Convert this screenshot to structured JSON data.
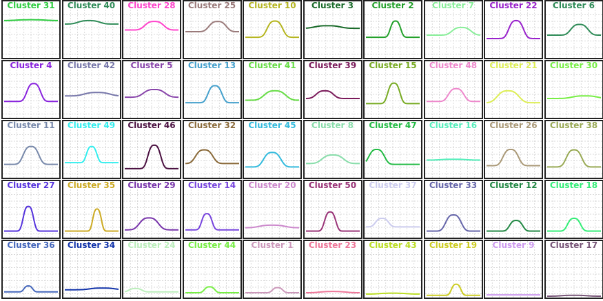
{
  "chart_data": {
    "type": "line",
    "layout": "small-multiples",
    "grid": true,
    "x_domain": [
      0,
      1
    ],
    "y_domain": [
      0,
      1
    ],
    "panels": [
      {
        "title": "Cluster 31",
        "color": "#2ecc40",
        "base": 0.84,
        "amp": 0.02,
        "center": 0.5,
        "width": 0.35
      },
      {
        "title": "Cluster 40",
        "color": "#2e8b57",
        "base": 0.76,
        "amp": 0.08,
        "center": 0.45,
        "width": 0.25
      },
      {
        "title": "Cluster 28",
        "color": "#ff44cc",
        "base": 0.62,
        "amp": 0.2,
        "center": 0.55,
        "width": 0.22
      },
      {
        "title": "Cluster 25",
        "color": "#9a7a7a",
        "base": 0.58,
        "amp": 0.24,
        "center": 0.6,
        "width": 0.2
      },
      {
        "title": "Cluster 10",
        "color": "#b5b520",
        "base": 0.45,
        "amp": 0.38,
        "center": 0.55,
        "width": 0.18
      },
      {
        "title": "Cluster 3",
        "color": "#1a6b2a",
        "base": 0.66,
        "amp": 0.06,
        "center": 0.4,
        "width": 0.3
      },
      {
        "title": "Cluster 2",
        "color": "#22a02a",
        "base": 0.45,
        "amp": 0.38,
        "center": 0.55,
        "width": 0.12
      },
      {
        "title": "Cluster 7",
        "color": "#88ee99",
        "base": 0.5,
        "amp": 0.18,
        "center": 0.65,
        "width": 0.22
      },
      {
        "title": "Cluster 22",
        "color": "#9922cc",
        "base": 0.42,
        "amp": 0.42,
        "center": 0.55,
        "width": 0.17
      },
      {
        "title": "Cluster 6",
        "color": "#2e8b57",
        "base": 0.5,
        "amp": 0.25,
        "center": 0.6,
        "width": 0.2
      },
      {
        "title": "Cluster 4",
        "color": "#8822dd",
        "base": 0.35,
        "amp": 0.42,
        "center": 0.55,
        "width": 0.16
      },
      {
        "title": "Cluster 42",
        "color": "#7777aa",
        "base": 0.48,
        "amp": 0.08,
        "center": 0.6,
        "width": 0.3
      },
      {
        "title": "Cluster 5",
        "color": "#8844aa",
        "base": 0.45,
        "amp": 0.18,
        "center": 0.55,
        "width": 0.25
      },
      {
        "title": "Cluster 13",
        "color": "#44a0cc",
        "base": 0.32,
        "amp": 0.4,
        "center": 0.55,
        "width": 0.16
      },
      {
        "title": "Cluster 41",
        "color": "#66dd44",
        "base": 0.38,
        "amp": 0.22,
        "center": 0.55,
        "width": 0.25
      },
      {
        "title": "Cluster 39",
        "color": "#7a1a5a",
        "base": 0.42,
        "amp": 0.18,
        "center": 0.35,
        "width": 0.2
      },
      {
        "title": "Cluster 15",
        "color": "#77aa22",
        "base": 0.3,
        "amp": 0.48,
        "center": 0.52,
        "width": 0.14
      },
      {
        "title": "Cluster 48",
        "color": "#ee88cc",
        "base": 0.35,
        "amp": 0.3,
        "center": 0.55,
        "width": 0.18
      },
      {
        "title": "Cluster 21",
        "color": "#ddee55",
        "base": 0.32,
        "amp": 0.28,
        "center": 0.4,
        "width": 0.25
      },
      {
        "title": "Cluster 30",
        "color": "#77ee44",
        "base": 0.42,
        "amp": 0.06,
        "center": 0.7,
        "width": 0.3
      },
      {
        "title": "Cluster 11",
        "color": "#7788aa",
        "base": 0.28,
        "amp": 0.42,
        "center": 0.5,
        "width": 0.18
      },
      {
        "title": "Cluster 49",
        "color": "#33eeee",
        "base": 0.32,
        "amp": 0.38,
        "center": 0.5,
        "width": 0.12
      },
      {
        "title": "Cluster 46",
        "color": "#4a1040",
        "base": 0.18,
        "amp": 0.55,
        "center": 0.55,
        "width": 0.15
      },
      {
        "title": "Cluster 32",
        "color": "#8a6a3a",
        "base": 0.3,
        "amp": 0.32,
        "center": 0.35,
        "width": 0.2
      },
      {
        "title": "Cluster 45",
        "color": "#33bbdd",
        "base": 0.22,
        "amp": 0.34,
        "center": 0.5,
        "width": 0.2
      },
      {
        "title": "Cluster 8",
        "color": "#88ddaa",
        "base": 0.3,
        "amp": 0.2,
        "center": 0.5,
        "width": 0.25
      },
      {
        "title": "Cluster 47",
        "color": "#22bb44",
        "base": 0.28,
        "amp": 0.35,
        "center": 0.2,
        "width": 0.18
      },
      {
        "title": "Cluster 16",
        "color": "#55eebb",
        "base": 0.38,
        "amp": 0.02,
        "center": 0.5,
        "width": 0.3
      },
      {
        "title": "Cluster 26",
        "color": "#aa9977",
        "base": 0.25,
        "amp": 0.38,
        "center": 0.45,
        "width": 0.18
      },
      {
        "title": "Cluster 38",
        "color": "#99aa55",
        "base": 0.22,
        "amp": 0.4,
        "center": 0.5,
        "width": 0.18
      },
      {
        "title": "Cluster 27",
        "color": "#5533dd",
        "base": 0.12,
        "amp": 0.58,
        "center": 0.45,
        "width": 0.12
      },
      {
        "title": "Cluster 35",
        "color": "#ccaa22",
        "base": 0.12,
        "amp": 0.52,
        "center": 0.6,
        "width": 0.1
      },
      {
        "title": "Cluster 29",
        "color": "#7733aa",
        "base": 0.15,
        "amp": 0.28,
        "center": 0.45,
        "width": 0.22
      },
      {
        "title": "Cluster 14",
        "color": "#7744dd",
        "base": 0.15,
        "amp": 0.38,
        "center": 0.4,
        "width": 0.12
      },
      {
        "title": "Cluster 20",
        "color": "#cc88cc",
        "base": 0.2,
        "amp": 0.06,
        "center": 0.5,
        "width": 0.3
      },
      {
        "title": "Cluster 50",
        "color": "#993377",
        "base": 0.12,
        "amp": 0.45,
        "center": 0.45,
        "width": 0.13
      },
      {
        "title": "Cluster 37",
        "color": "#ccccee",
        "base": 0.22,
        "amp": 0.2,
        "center": 0.3,
        "width": 0.15
      },
      {
        "title": "Cluster 33",
        "color": "#6666aa",
        "base": 0.12,
        "amp": 0.38,
        "center": 0.5,
        "width": 0.18
      },
      {
        "title": "Cluster 12",
        "color": "#228844",
        "base": 0.12,
        "amp": 0.25,
        "center": 0.55,
        "width": 0.15
      },
      {
        "title": "Cluster 18",
        "color": "#33ee77",
        "base": 0.12,
        "amp": 0.3,
        "center": 0.5,
        "width": 0.15
      },
      {
        "title": "Cluster 36",
        "color": "#4466bb",
        "base": 0.1,
        "amp": 0.14,
        "center": 0.45,
        "width": 0.1
      },
      {
        "title": "Cluster 34",
        "color": "#1133aa",
        "base": 0.15,
        "amp": 0.04,
        "center": 0.7,
        "width": 0.3
      },
      {
        "title": "Cluster 24",
        "color": "#bbeebb",
        "base": 0.1,
        "amp": 0.08,
        "center": 0.2,
        "width": 0.15
      },
      {
        "title": "Cluster 44",
        "color": "#77ee44",
        "base": 0.08,
        "amp": 0.14,
        "center": 0.45,
        "width": 0.12
      },
      {
        "title": "Cluster 1",
        "color": "#cc99bb",
        "base": 0.08,
        "amp": 0.12,
        "center": 0.6,
        "width": 0.12
      },
      {
        "title": "Cluster 23",
        "color": "#ee7799",
        "base": 0.08,
        "amp": 0.03,
        "center": 0.5,
        "width": 0.3
      },
      {
        "title": "Cluster 43",
        "color": "#bbdd22",
        "base": 0.05,
        "amp": 0.02,
        "center": 0.5,
        "width": 0.3
      },
      {
        "title": "Cluster 19",
        "color": "#cccc22",
        "base": 0.02,
        "amp": 0.26,
        "center": 0.55,
        "width": 0.11
      },
      {
        "title": "Cluster 9",
        "color": "#cc99ee",
        "base": 0.03,
        "amp": 0.0,
        "center": 0.5,
        "width": 0.3
      },
      {
        "title": "Cluster 17",
        "color": "#775577",
        "base": 0.0,
        "amp": 0.02,
        "center": 0.5,
        "width": 0.3
      }
    ]
  }
}
